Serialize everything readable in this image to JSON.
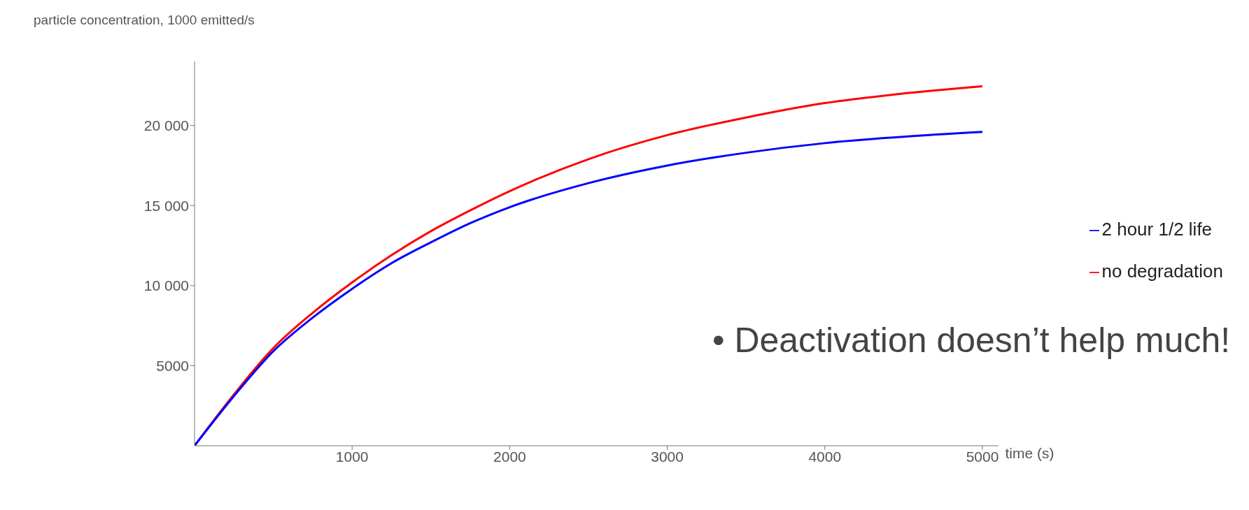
{
  "chart_data": {
    "type": "line",
    "ylabel": "particle concentration, 1000 emitted/s",
    "xlabel": "time (s)",
    "x": [
      0,
      250,
      500,
      750,
      1000,
      1250,
      1500,
      1750,
      2000,
      2500,
      3000,
      3500,
      4000,
      4500,
      5000
    ],
    "series": [
      {
        "name": "no degradation",
        "color": "#ff0000",
        "values": [
          0,
          3200,
          6100,
          8300,
          10200,
          11900,
          13400,
          14700,
          15900,
          17900,
          19400,
          20500,
          21400,
          22000,
          22450
        ]
      },
      {
        "name": "2 hour 1/2 life",
        "color": "#0000ff",
        "values": [
          0,
          3100,
          5900,
          8000,
          9800,
          11400,
          12700,
          13900,
          14900,
          16400,
          17500,
          18300,
          18900,
          19300,
          19600
        ]
      }
    ],
    "xlim": [
      0,
      5100
    ],
    "xticks": [
      1000,
      2000,
      3000,
      4000,
      5000
    ],
    "ylim": [
      0,
      24000
    ],
    "yticks": [
      {
        "value": 5000,
        "label": "5000"
      },
      {
        "value": 10000,
        "label": "10 000"
      },
      {
        "value": 15000,
        "label": "15 000"
      },
      {
        "value": 20000,
        "label": "20 000"
      }
    ],
    "legend": "right",
    "marker": "none",
    "line_style": "solid",
    "annotations": [
      "• Deactivation doesn’t help much!"
    ]
  }
}
